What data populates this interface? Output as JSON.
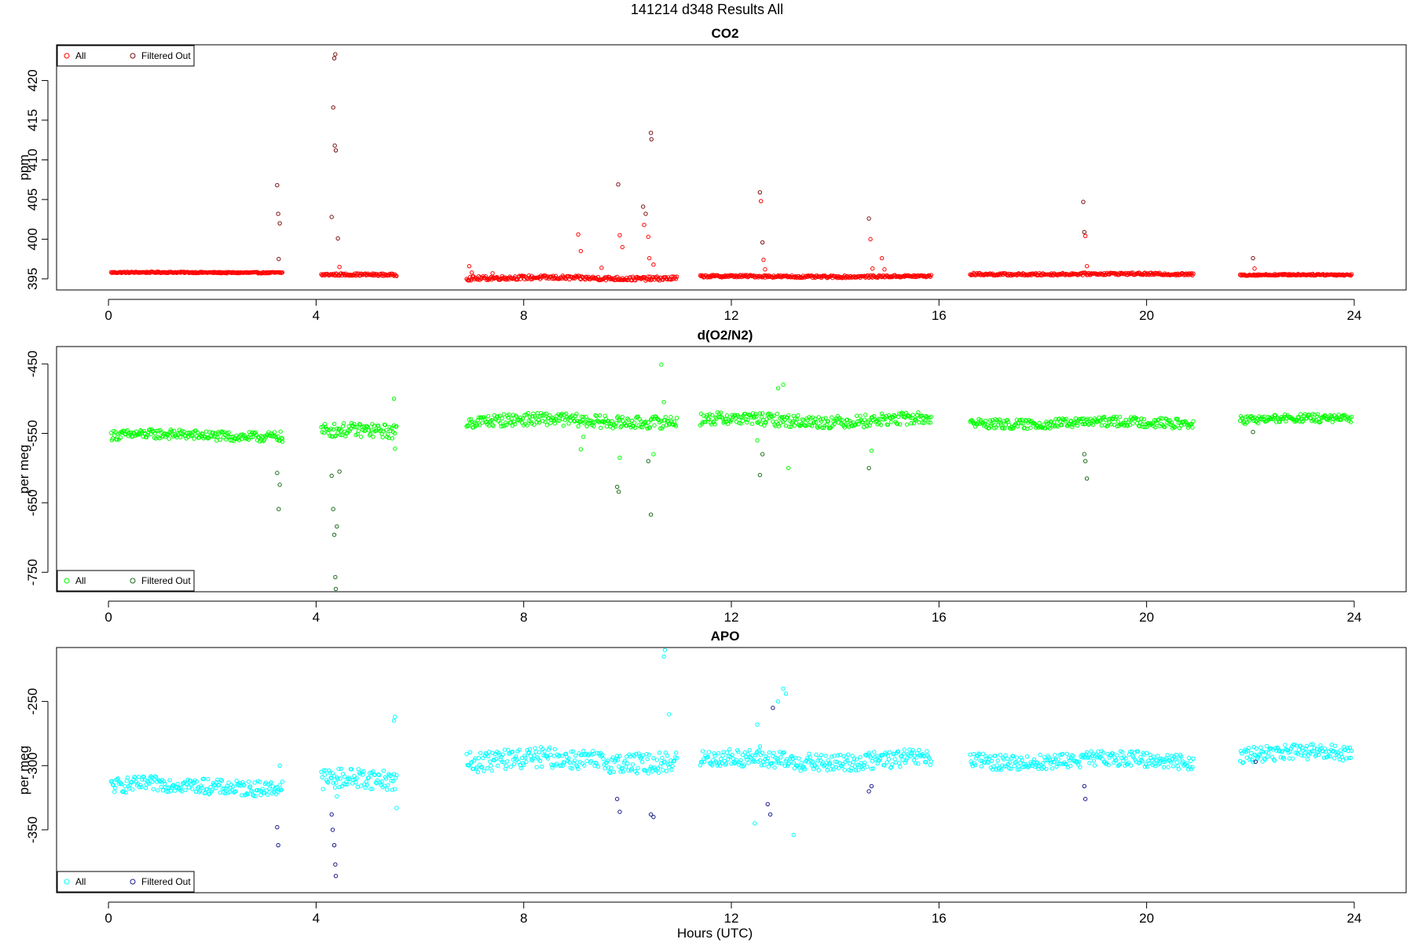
{
  "figure": {
    "title": "141214    d348    Results All",
    "xlabel": "Hours (UTC)"
  },
  "chart_data": [
    {
      "type": "scatter",
      "title": "CO2",
      "xlabel": "",
      "ylabel": "ppm",
      "xlim": [
        -1,
        25
      ],
      "ylim": [
        393.6,
        424.5
      ],
      "xticks": [
        0,
        4,
        8,
        12,
        16,
        20,
        24
      ],
      "yticks": [
        395,
        400,
        405,
        410,
        415,
        420
      ],
      "legend": {
        "position": "top-left",
        "entries": [
          "All",
          "Filtered Out"
        ]
      },
      "colors": {
        "all": "#ff0000",
        "filtered": "#7a1010"
      },
      "segments": [
        {
          "x": [
            0.05,
            3.35
          ],
          "base": 395.8,
          "amp": 0.08
        },
        {
          "x": [
            4.1,
            5.55
          ],
          "base": 395.5,
          "amp": 0.15
        },
        {
          "x": [
            6.9,
            10.95
          ],
          "base": 395.1,
          "amp": 0.25
        },
        {
          "x": [
            11.4,
            15.85
          ],
          "base": 395.3,
          "amp": 0.15
        },
        {
          "x": [
            16.6,
            20.9
          ],
          "base": 395.6,
          "amp": 0.15
        },
        {
          "x": [
            21.8,
            23.95
          ],
          "base": 395.5,
          "amp": 0.1
        }
      ],
      "excursions": [
        [
          3.25,
          406.8
        ],
        [
          3.27,
          403.2
        ],
        [
          3.3,
          402.0
        ],
        [
          3.28,
          397.5
        ],
        [
          4.3,
          402.8
        ],
        [
          4.33,
          416.6
        ],
        [
          4.36,
          411.8
        ],
        [
          4.38,
          411.2
        ],
        [
          4.37,
          423.3
        ],
        [
          4.35,
          422.8
        ],
        [
          4.42,
          400.1
        ],
        [
          4.45,
          396.5
        ],
        [
          6.95,
          396.6
        ],
        [
          7.0,
          395.8
        ],
        [
          7.4,
          395.7
        ],
        [
          9.05,
          400.6
        ],
        [
          9.1,
          398.5
        ],
        [
          9.5,
          396.4
        ],
        [
          9.82,
          406.9
        ],
        [
          9.85,
          400.5
        ],
        [
          9.9,
          399.0
        ],
        [
          10.3,
          404.1
        ],
        [
          10.32,
          401.8
        ],
        [
          10.35,
          403.2
        ],
        [
          10.4,
          400.3
        ],
        [
          10.42,
          397.6
        ],
        [
          10.45,
          413.4
        ],
        [
          10.46,
          412.6
        ],
        [
          10.5,
          396.8
        ],
        [
          12.55,
          405.9
        ],
        [
          12.57,
          404.8
        ],
        [
          12.6,
          399.6
        ],
        [
          12.62,
          397.4
        ],
        [
          12.65,
          396.2
        ],
        [
          14.65,
          402.6
        ],
        [
          14.68,
          400.0
        ],
        [
          14.72,
          396.3
        ],
        [
          14.9,
          397.6
        ],
        [
          14.95,
          396.2
        ],
        [
          18.78,
          404.7
        ],
        [
          18.8,
          400.9
        ],
        [
          18.82,
          400.4
        ],
        [
          18.85,
          396.6
        ],
        [
          22.05,
          397.6
        ],
        [
          22.08,
          396.3
        ]
      ],
      "filtered_x": [
        3.25,
        3.27,
        3.3,
        4.3,
        4.33,
        4.36,
        4.37,
        4.42,
        9.82,
        10.3,
        10.35,
        10.45,
        12.55,
        12.6,
        14.65,
        18.78,
        18.8,
        22.05
      ]
    },
    {
      "type": "scatter",
      "title": "d(O2/N2)",
      "xlabel": "",
      "ylabel": "per meg",
      "xlim": [
        -1,
        25
      ],
      "ylim": [
        -778,
        -425
      ],
      "xticks": [
        0,
        4,
        8,
        12,
        16,
        20,
        24
      ],
      "yticks": [
        -450,
        -550,
        -650,
        -750
      ],
      "legend": {
        "position": "bottom-left",
        "entries": [
          "All",
          "Filtered Out"
        ]
      },
      "colors": {
        "all": "#00ff00",
        "filtered": "#1a6b1a"
      },
      "segments": [
        {
          "x": [
            0.05,
            3.35
          ],
          "base": -553,
          "amp": 7
        },
        {
          "x": [
            4.1,
            5.55
          ],
          "base": -548,
          "amp": 10
        },
        {
          "x": [
            6.9,
            10.95
          ],
          "base": -532,
          "amp": 9
        },
        {
          "x": [
            11.4,
            15.85
          ],
          "base": -531,
          "amp": 9
        },
        {
          "x": [
            16.6,
            20.9
          ],
          "base": -535,
          "amp": 7
        },
        {
          "x": [
            21.8,
            23.95
          ],
          "base": -530,
          "amp": 6
        }
      ],
      "excursions": [
        [
          3.25,
          -607
        ],
        [
          3.3,
          -624
        ],
        [
          3.28,
          -659
        ],
        [
          3.35,
          -562
        ],
        [
          4.3,
          -611
        ],
        [
          4.33,
          -659
        ],
        [
          4.35,
          -696
        ],
        [
          4.37,
          -757
        ],
        [
          4.38,
          -774
        ],
        [
          4.4,
          -684
        ],
        [
          4.45,
          -605
        ],
        [
          5.5,
          -500
        ],
        [
          5.52,
          -572
        ],
        [
          9.1,
          -573
        ],
        [
          9.15,
          -555
        ],
        [
          9.8,
          -627
        ],
        [
          9.83,
          -634
        ],
        [
          9.85,
          -585
        ],
        [
          10.4,
          -590
        ],
        [
          10.45,
          -667
        ],
        [
          10.5,
          -580
        ],
        [
          10.65,
          -451
        ],
        [
          10.7,
          -505
        ],
        [
          12.5,
          -560
        ],
        [
          12.55,
          -610
        ],
        [
          12.6,
          -580
        ],
        [
          12.9,
          -485
        ],
        [
          13.0,
          -480
        ],
        [
          13.1,
          -600
        ],
        [
          14.65,
          -600
        ],
        [
          14.7,
          -575
        ],
        [
          18.8,
          -580
        ],
        [
          18.82,
          -590
        ],
        [
          18.85,
          -615
        ],
        [
          22.05,
          -548
        ]
      ],
      "filtered_x": [
        3.25,
        3.3,
        3.28,
        4.3,
        4.33,
        4.35,
        4.37,
        4.38,
        4.4,
        4.45,
        9.8,
        9.83,
        10.4,
        10.45,
        12.55,
        12.6,
        14.65,
        18.8,
        18.82,
        18.85,
        22.05
      ]
    },
    {
      "type": "scatter",
      "title": "APO",
      "xlabel": "Hours (UTC)",
      "ylabel": "per meg",
      "xlim": [
        -1,
        25
      ],
      "ylim": [
        -399,
        -208
      ],
      "xticks": [
        0,
        4,
        8,
        12,
        16,
        20,
        24
      ],
      "yticks": [
        -250,
        -300,
        -350
      ],
      "legend": {
        "position": "bottom-left",
        "entries": [
          "All",
          "Filtered Out"
        ]
      },
      "colors": {
        "all": "#00ffff",
        "filtered": "#1a1a8c"
      },
      "segments": [
        {
          "x": [
            0.05,
            3.35
          ],
          "base": -316,
          "amp": 6
        },
        {
          "x": [
            4.1,
            5.55
          ],
          "base": -312,
          "amp": 8
        },
        {
          "x": [
            6.9,
            10.95
          ],
          "base": -296,
          "amp": 8
        },
        {
          "x": [
            11.4,
            15.85
          ],
          "base": -296,
          "amp": 7
        },
        {
          "x": [
            16.6,
            20.9
          ],
          "base": -296,
          "amp": 6
        },
        {
          "x": [
            21.8,
            23.95
          ],
          "base": -291,
          "amp": 6
        }
      ],
      "excursions": [
        [
          3.25,
          -348
        ],
        [
          3.27,
          -362
        ],
        [
          3.3,
          -300
        ],
        [
          4.3,
          -338
        ],
        [
          4.32,
          -350
        ],
        [
          4.35,
          -362
        ],
        [
          4.37,
          -377
        ],
        [
          4.38,
          -386
        ],
        [
          4.4,
          -324
        ],
        [
          5.5,
          -265
        ],
        [
          5.52,
          -262
        ],
        [
          5.55,
          -333
        ],
        [
          9.8,
          -326
        ],
        [
          9.85,
          -336
        ],
        [
          10.45,
          -338
        ],
        [
          10.5,
          -340
        ],
        [
          10.7,
          -215
        ],
        [
          10.72,
          -210
        ],
        [
          10.8,
          -260
        ],
        [
          12.5,
          -268
        ],
        [
          12.55,
          -285
        ],
        [
          12.7,
          -330
        ],
        [
          12.75,
          -338
        ],
        [
          12.8,
          -255
        ],
        [
          12.9,
          -250
        ],
        [
          13.0,
          -240
        ],
        [
          13.05,
          -244
        ],
        [
          13.2,
          -354
        ],
        [
          12.45,
          -345
        ],
        [
          14.65,
          -320
        ],
        [
          14.7,
          -316
        ],
        [
          18.8,
          -316
        ],
        [
          18.82,
          -326
        ],
        [
          22.1,
          -297
        ]
      ],
      "filtered_x": [
        3.25,
        3.27,
        4.3,
        4.32,
        4.35,
        4.37,
        4.38,
        9.8,
        9.85,
        10.45,
        10.5,
        12.7,
        12.75,
        12.8,
        14.65,
        14.7,
        18.8,
        18.82,
        22.1
      ]
    }
  ]
}
